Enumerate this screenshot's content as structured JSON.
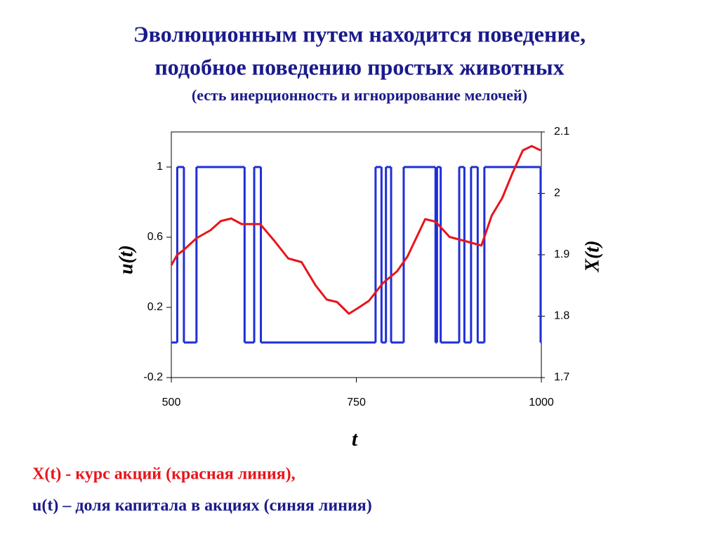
{
  "chart_data": {
    "type": "line",
    "title": "Эволюционным путем находится поведение,",
    "title_line2": "подобное поведению простых животных",
    "subtitle": "(есть инерционность и игнорирование мелочей)",
    "x_label": "t",
    "y_label": "u(t)",
    "y2_label": "X(t)",
    "xlim": [
      500,
      1000
    ],
    "xticks": [
      500,
      750,
      1000
    ],
    "ylim": [
      -0.2,
      1.2
    ],
    "yticks": [
      -0.2,
      0.2,
      0.6,
      1
    ],
    "y2lim": [
      1.7,
      2.1
    ],
    "y2ticks": [
      1.7,
      1.8,
      1.9,
      2,
      2.1
    ],
    "series": [
      {
        "name": "X(t) - курс акций (красная линия),",
        "color": "#e8141b",
        "axis": "y2",
        "step": false,
        "x": [
          500,
          508,
          517,
          534,
          553,
          567,
          581,
          595,
          620,
          639,
          658,
          676,
          695,
          710,
          724,
          740,
          752,
          767,
          786,
          805,
          819,
          843,
          857,
          876,
          895,
          919,
          933,
          947,
          961,
          975,
          987,
          999
        ],
        "values": [
          1.883,
          1.9,
          1.908,
          1.927,
          1.94,
          1.955,
          1.959,
          1.95,
          1.95,
          1.923,
          1.894,
          1.888,
          1.85,
          1.827,
          1.823,
          1.804,
          1.813,
          1.825,
          1.854,
          1.873,
          1.897,
          1.958,
          1.954,
          1.929,
          1.923,
          1.915,
          1.964,
          1.992,
          2.033,
          2.07,
          2.077,
          2.07
        ]
      },
      {
        "name": "u(t) – доля капитала в акциях (синяя линия)",
        "color": "#1f2fd6",
        "axis": "y",
        "step": true,
        "x": [
          500,
          508,
          517,
          534,
          599,
          612,
          621,
          776,
          784,
          790,
          797,
          814,
          857,
          859,
          864,
          889,
          896,
          905,
          914,
          923,
          999,
          1000
        ],
        "values": [
          0,
          1,
          0,
          1,
          0,
          1,
          0,
          1,
          0,
          1,
          0,
          1,
          0,
          1,
          0,
          1,
          0,
          1,
          0,
          1,
          0,
          0
        ]
      }
    ]
  }
}
